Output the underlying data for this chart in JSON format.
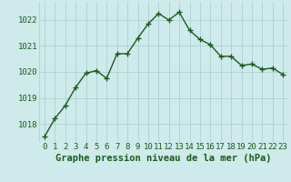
{
  "x": [
    0,
    1,
    2,
    3,
    4,
    5,
    6,
    7,
    8,
    9,
    10,
    11,
    12,
    13,
    14,
    15,
    16,
    17,
    18,
    19,
    20,
    21,
    22,
    23
  ],
  "y": [
    1017.5,
    1018.2,
    1018.7,
    1019.4,
    1019.95,
    1020.05,
    1019.75,
    1020.7,
    1020.7,
    1021.3,
    1021.85,
    1022.25,
    1022.0,
    1022.3,
    1021.6,
    1021.25,
    1021.05,
    1020.6,
    1020.6,
    1020.25,
    1020.3,
    1020.1,
    1020.15,
    1019.9
  ],
  "line_color": "#1a5c1a",
  "marker": "+",
  "marker_size": 4,
  "line_width": 1.0,
  "bg_color": "#ceeaea",
  "grid_color": "#a8cccc",
  "xlabel": "Graphe pression niveau de la mer (hPa)",
  "xlabel_fontsize": 7.5,
  "xlabel_color": "#1a5c1a",
  "xlabel_bold": true,
  "yticks": [
    1018,
    1019,
    1020,
    1021,
    1022
  ],
  "xticks": [
    0,
    1,
    2,
    3,
    4,
    5,
    6,
    7,
    8,
    9,
    10,
    11,
    12,
    13,
    14,
    15,
    16,
    17,
    18,
    19,
    20,
    21,
    22,
    23
  ],
  "ylim": [
    1017.3,
    1022.7
  ],
  "xlim": [
    -0.5,
    23.5
  ],
  "tick_fontsize": 6.5,
  "tick_color": "#1a5c1a"
}
